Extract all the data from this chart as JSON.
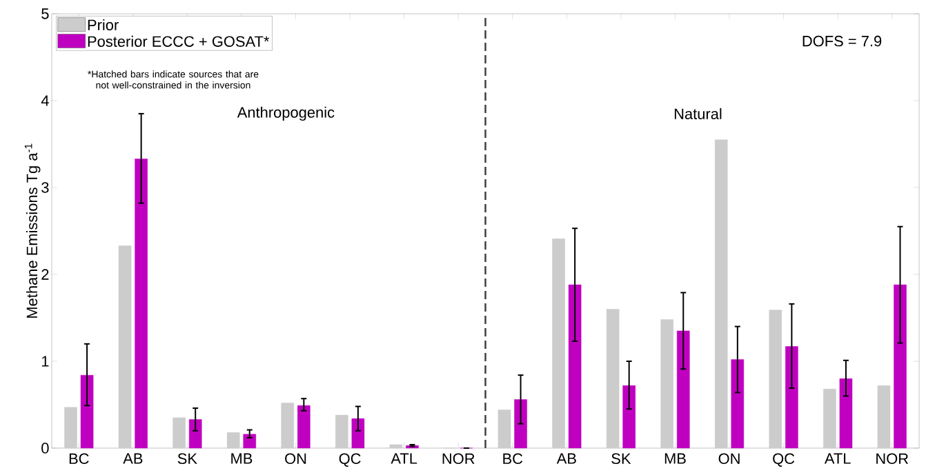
{
  "chart_data": {
    "type": "bar",
    "ylabel": "Methane Emissions Tg a$^{-1}$",
    "categories": [
      "BC",
      "AB",
      "SK",
      "MB",
      "ON",
      "QC",
      "ATL",
      "NOR",
      "BC",
      "AB",
      "SK",
      "MB",
      "ON",
      "QC",
      "ATL",
      "NOR"
    ],
    "series": [
      {
        "name": "Prior",
        "color": "#cccccc",
        "values": [
          0.47,
          2.33,
          0.35,
          0.18,
          0.52,
          0.38,
          0.04,
          0,
          0.44,
          2.41,
          1.6,
          1.48,
          3.55,
          1.59,
          0.68,
          0.72
        ]
      },
      {
        "name": "Posterior ECCC + GOSAT*",
        "color": "#c000c0",
        "values": [
          0.84,
          3.33,
          0.33,
          0.16,
          0.49,
          0.34,
          0.03,
          0,
          0.56,
          1.88,
          0.72,
          1.35,
          1.02,
          1.17,
          0.8,
          1.88
        ],
        "errors": [
          [
            0.49,
            1.2
          ],
          [
            2.82,
            3.85
          ],
          [
            0.2,
            0.46
          ],
          [
            0.12,
            0.21
          ],
          [
            0.43,
            0.57
          ],
          [
            0.2,
            0.48
          ],
          [
            0.02,
            0.04
          ],
          [
            0,
            0
          ],
          [
            0.28,
            0.84
          ],
          [
            1.23,
            2.53
          ],
          [
            0.45,
            1.0
          ],
          [
            0.91,
            1.79
          ],
          [
            0.64,
            1.4
          ],
          [
            0.69,
            1.66
          ],
          [
            0.6,
            1.01
          ],
          [
            1.21,
            2.55
          ]
        ]
      }
    ],
    "ylim": [
      0,
      5
    ],
    "yticks": [
      0,
      1,
      2,
      3,
      4,
      5
    ],
    "annotations": [
      "*Hatched bars indicate sources that are not well-constrained in the inversion",
      "Anthropogenic",
      "Natural",
      "DOFS = 7.9"
    ],
    "legend": "top left",
    "grid": false
  }
}
